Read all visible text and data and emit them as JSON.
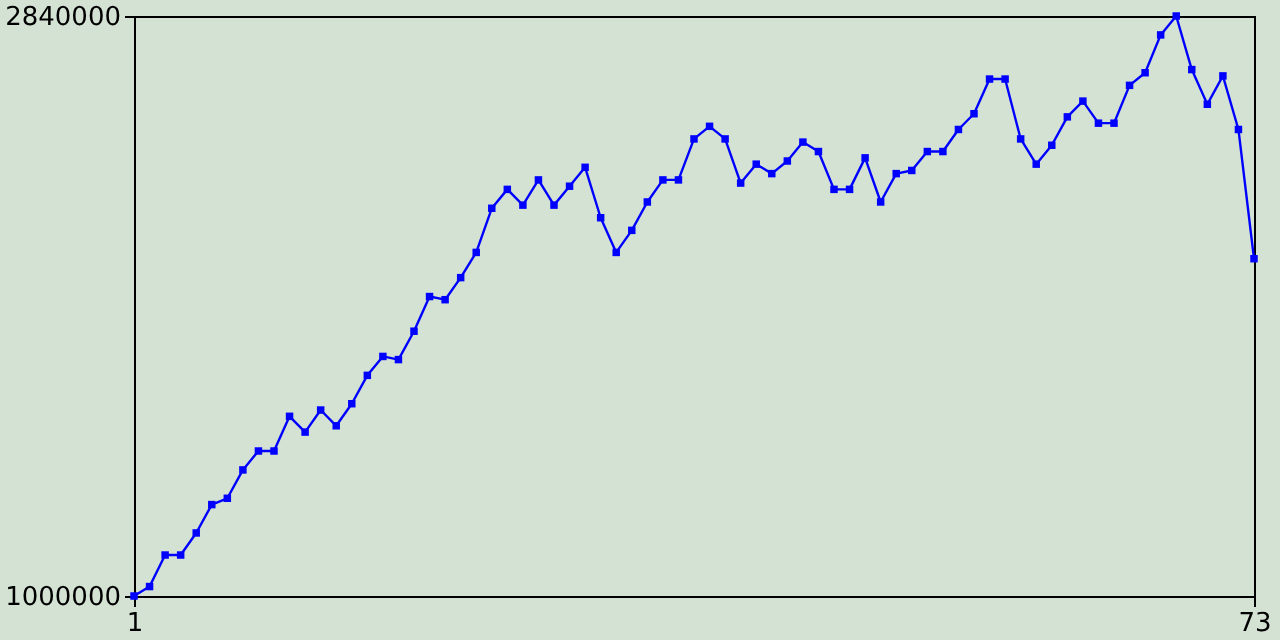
{
  "chart_data": {
    "type": "line",
    "x": [
      1,
      2,
      3,
      4,
      5,
      6,
      7,
      8,
      9,
      10,
      11,
      12,
      13,
      14,
      15,
      16,
      17,
      18,
      19,
      20,
      21,
      22,
      23,
      24,
      25,
      26,
      27,
      28,
      29,
      30,
      31,
      32,
      33,
      34,
      35,
      36,
      37,
      38,
      39,
      40,
      41,
      42,
      43,
      44,
      45,
      46,
      47,
      48,
      49,
      50,
      51,
      52,
      53,
      54,
      55,
      56,
      57,
      58,
      59,
      60,
      61,
      62,
      63,
      64,
      65,
      66,
      67,
      68,
      69,
      70,
      71,
      72,
      73
    ],
    "series": [
      {
        "color": "#0000ff",
        "values": [
          1000000,
          1030000,
          1130000,
          1130000,
          1200000,
          1290000,
          1310000,
          1400000,
          1460000,
          1460000,
          1570000,
          1520000,
          1590000,
          1540000,
          1610000,
          1700000,
          1760000,
          1750000,
          1840000,
          1950000,
          1940000,
          2010000,
          2090000,
          2230000,
          2290000,
          2240000,
          2320000,
          2240000,
          2300000,
          2360000,
          2200000,
          2090000,
          2160000,
          2250000,
          2320000,
          2320000,
          2450000,
          2490000,
          2450000,
          2310000,
          2370000,
          2340000,
          2380000,
          2440000,
          2410000,
          2290000,
          2290000,
          2390000,
          2250000,
          2340000,
          2350000,
          2410000,
          2410000,
          2480000,
          2530000,
          2640000,
          2640000,
          2450000,
          2370000,
          2430000,
          2520000,
          2570000,
          2500000,
          2500000,
          2620000,
          2660000,
          2780000,
          2840000,
          2670000,
          2560000,
          2650000,
          2480000,
          2070000
        ]
      }
    ],
    "xlim": [
      1,
      73
    ],
    "xticks": [
      1,
      73
    ],
    "ylim": [
      1000000,
      2840000
    ],
    "yticks": [
      1000000,
      2840000
    ],
    "grid": false,
    "marker": "square",
    "line_style": "solid"
  }
}
